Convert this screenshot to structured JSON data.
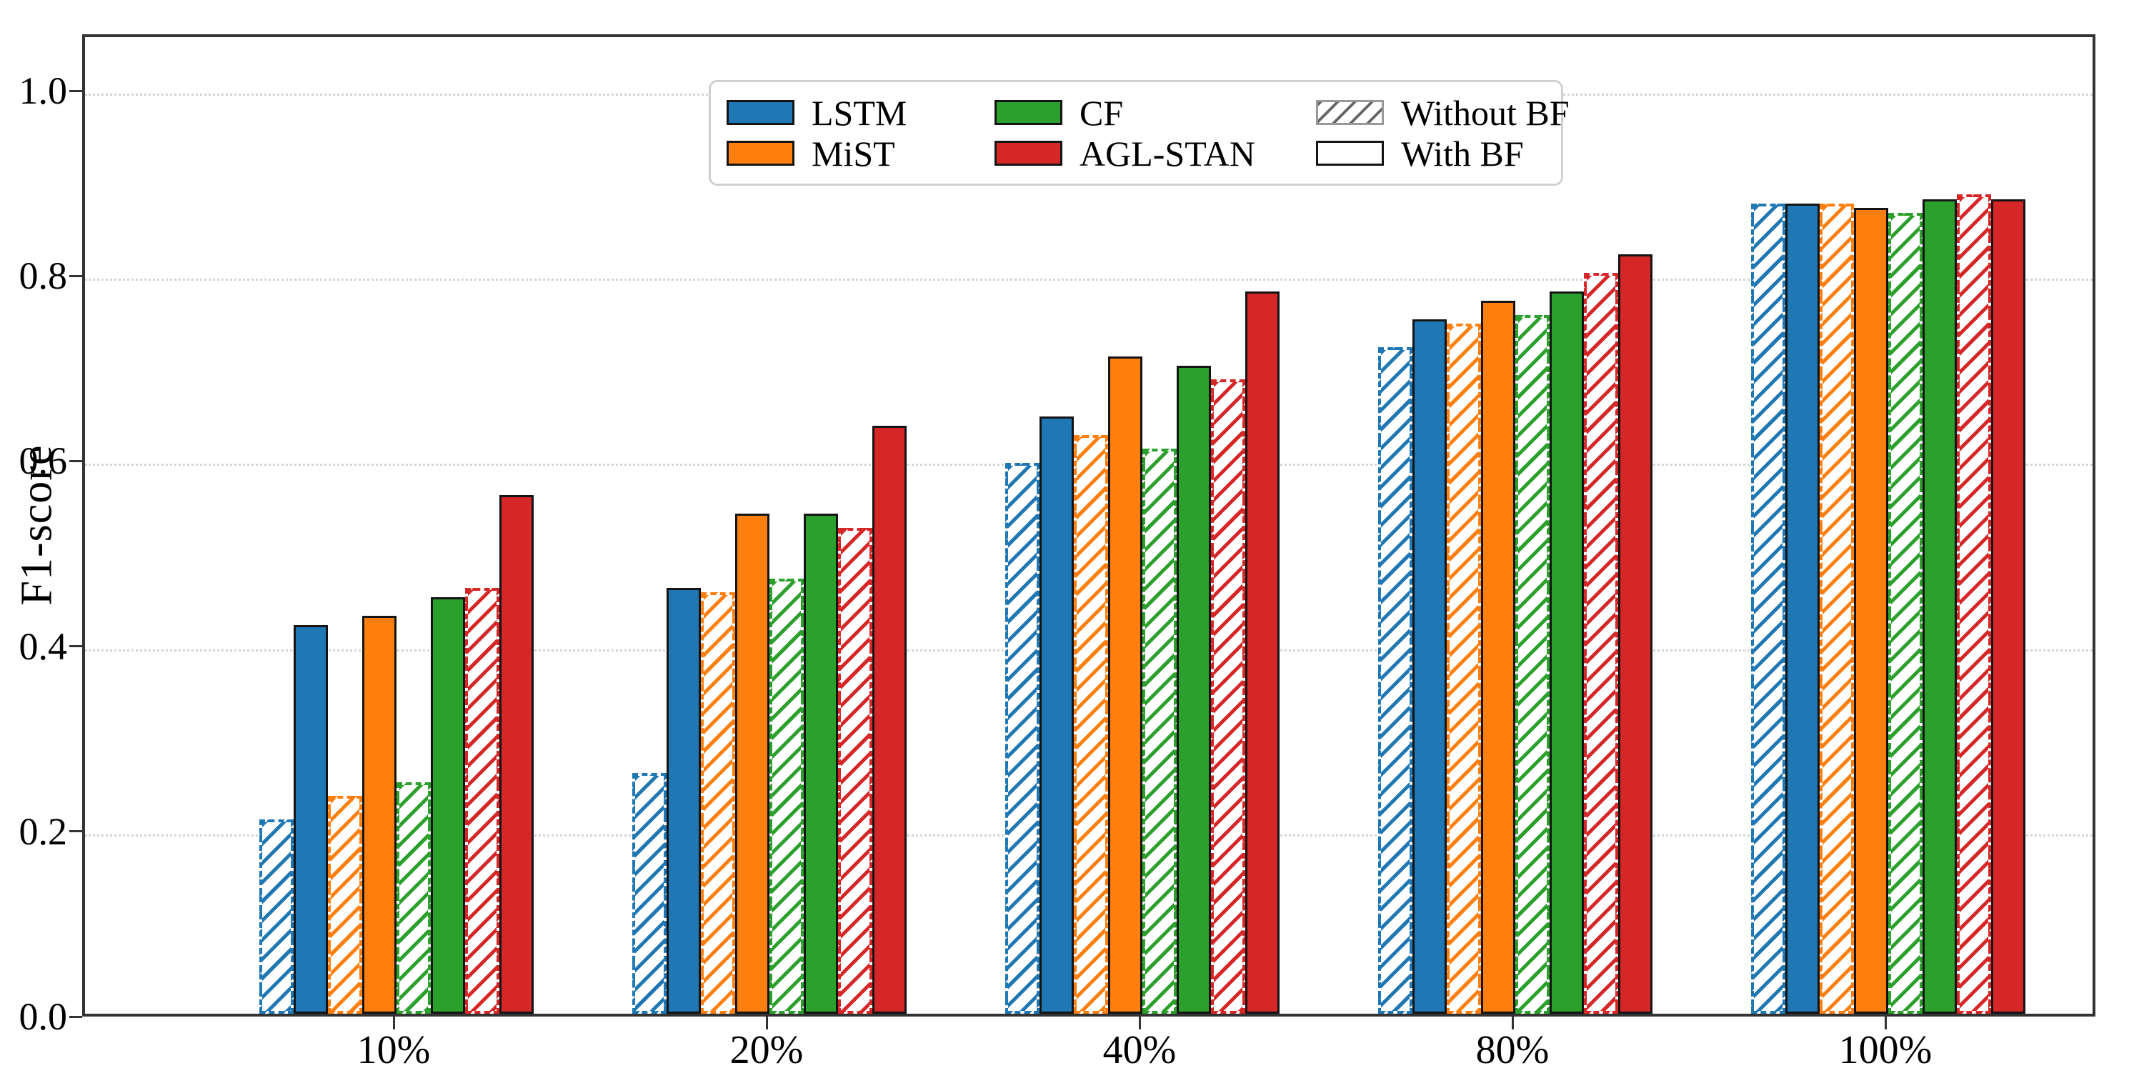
{
  "chart_data": {
    "type": "bar",
    "title": "",
    "xlabel": "",
    "ylabel": "F1-score",
    "categories": [
      "10%",
      "20%",
      "40%",
      "80%",
      "100%"
    ],
    "ytick_labels": [
      "0.0",
      "0.2",
      "0.4",
      "0.6",
      "0.8",
      "1.0"
    ],
    "ytick_values": [
      0.0,
      0.2,
      0.4,
      0.6,
      0.8,
      1.0
    ],
    "ylim": [
      0.0,
      1.06
    ],
    "grid": "horizontal dotted gridlines at y ticks",
    "legend_position": "upper center",
    "bar_group_order": "per category: for each model, hatched (Without BF) bar then solid (With BF) bar",
    "series": [
      {
        "name": "LSTM",
        "color": "#1f77b4",
        "without_bf": [
          0.21,
          0.26,
          0.595,
          0.72,
          0.875
        ],
        "with_bf": [
          0.42,
          0.46,
          0.645,
          0.75,
          0.875
        ]
      },
      {
        "name": "MiST",
        "color": "#ff7f0e",
        "without_bf": [
          0.235,
          0.455,
          0.625,
          0.745,
          0.875
        ],
        "with_bf": [
          0.43,
          0.54,
          0.71,
          0.77,
          0.87
        ]
      },
      {
        "name": "CF",
        "color": "#2ca02c",
        "without_bf": [
          0.25,
          0.47,
          0.61,
          0.755,
          0.865
        ],
        "with_bf": [
          0.45,
          0.54,
          0.7,
          0.78,
          0.88
        ]
      },
      {
        "name": "AGL-STAN",
        "color": "#d62728",
        "without_bf": [
          0.46,
          0.525,
          0.685,
          0.8,
          0.885
        ],
        "with_bf": [
          0.56,
          0.635,
          0.78,
          0.82,
          0.88
        ]
      }
    ],
    "variants": [
      {
        "label": "Without BF",
        "style": "hatched"
      },
      {
        "label": "With BF",
        "style": "solid"
      }
    ]
  }
}
